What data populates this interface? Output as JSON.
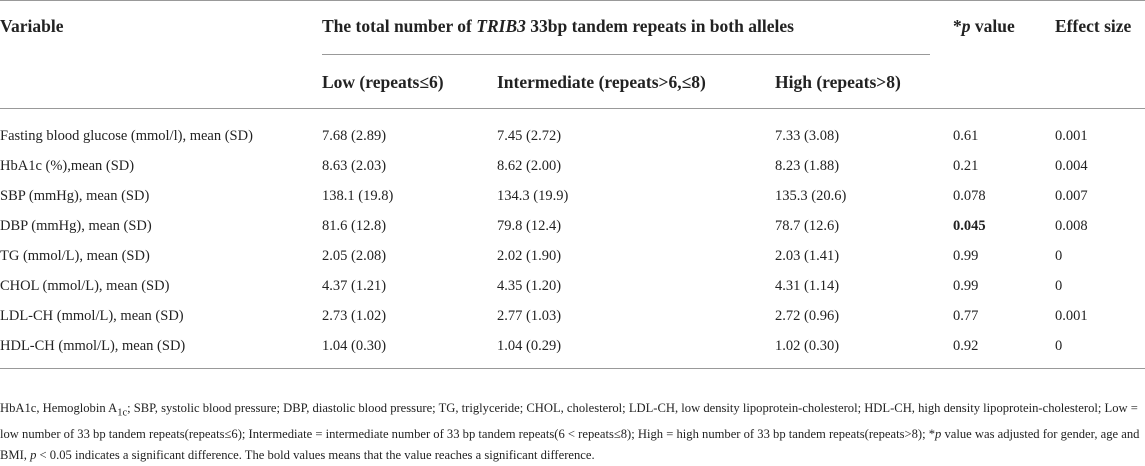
{
  "header": {
    "variable": "Variable",
    "group": [
      "The total number of ",
      "TRIB3",
      " 33bp tandem repeats in both alleles"
    ],
    "low": "Low (repeats≤6)",
    "intermediate": "Intermediate (repeats>6,≤8)",
    "high": "High (repeats>8)",
    "p_value": [
      "*",
      "p",
      " value"
    ],
    "effect_size": "Effect size"
  },
  "table": {
    "rows": [
      [
        "Fasting blood glucose (mmol/l), mean (SD)",
        "7.68 (2.89)",
        "7.45 (2.72)",
        "7.33 (3.08)",
        "0.61",
        "0.001"
      ],
      [
        "HbA1c (%),mean (SD)",
        "8.63 (2.03)",
        "8.62 (2.00)",
        "8.23 (1.88)",
        "0.21",
        "0.004"
      ],
      [
        "SBP (mmHg), mean (SD)",
        "138.1 (19.8)",
        "134.3 (19.9)",
        "135.3 (20.6)",
        "0.078",
        "0.007"
      ],
      [
        "DBP (mmHg), mean (SD)",
        "81.6 (12.8)",
        "79.8 (12.4)",
        "78.7 (12.6)",
        "0.045",
        "0.008"
      ],
      [
        "TG (mmol/L), mean (SD)",
        "2.05 (2.08)",
        "2.02 (1.90)",
        "2.03 (1.41)",
        "0.99",
        "0"
      ],
      [
        "CHOL (mmol/L), mean (SD)",
        "4.37 (1.21)",
        "4.35 (1.20)",
        "4.31 (1.14)",
        "0.99",
        "0"
      ],
      [
        "LDL-CH (mmol/L), mean (SD)",
        "2.73 (1.02)",
        "2.77 (1.03)",
        "2.72 (0.96)",
        "0.77",
        "0.001"
      ],
      [
        "HDL-CH (mmol/L), mean (SD)",
        "1.04 (0.30)",
        "1.04 (0.29)",
        "1.02 (0.30)",
        "0.92",
        "0"
      ]
    ]
  },
  "footnote": [
    "HbA1c, Hemoglobin A",
    "1c",
    "; SBP, systolic blood pressure; DBP, diastolic blood pressure; TG, triglyceride; CHOL, cholesterol; LDL-CH, low density lipoprotein-cholesterol; HDL-CH, high density lipoprotein-cholesterol; Low = low number of 33 bp tandem repeats(repeats≤6); Intermediate = intermediate number of 33 bp tandem repeats(6 < repeats≤8); High = high number of 33 bp tandem repeats(repeats>8); *",
    "p",
    " value was adjusted for gender, age and BMI, ",
    "p",
    " < 0.05 indicates a significant difference. The bold values means that the value reaches a significant difference."
  ]
}
